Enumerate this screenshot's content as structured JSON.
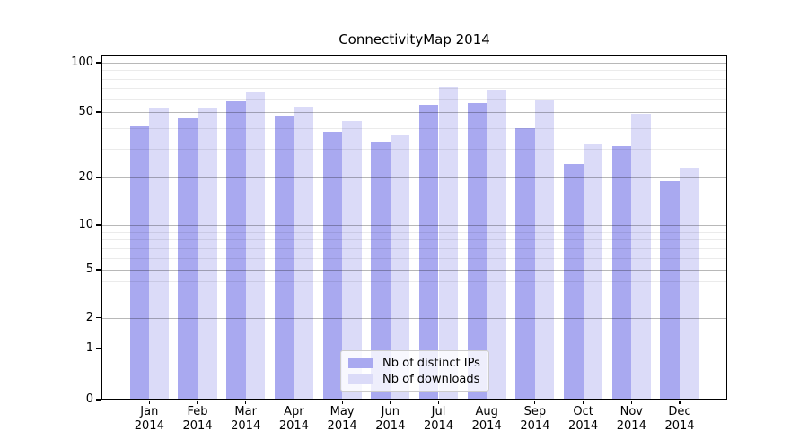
{
  "chart_data": {
    "type": "bar",
    "title": "ConnectivityMap 2014",
    "months": [
      "Jan",
      "Feb",
      "Mar",
      "Apr",
      "May",
      "Jun",
      "Jul",
      "Aug",
      "Sep",
      "Oct",
      "Nov",
      "Dec"
    ],
    "year": "2014",
    "series": [
      {
        "name": "Nb of distinct IPs",
        "color": "#a9a9f0",
        "values": [
          41,
          46,
          58,
          47,
          38,
          33,
          55,
          57,
          40,
          24,
          31,
          19
        ]
      },
      {
        "name": "Nb of downloads",
        "color": "#dbdbf8",
        "values": [
          53,
          53,
          66,
          54,
          44,
          36,
          71,
          68,
          59,
          32,
          49,
          23
        ]
      }
    ],
    "yticks": [
      100,
      50,
      20,
      10,
      5,
      2,
      1,
      0
    ],
    "minor_gridline_values": [
      90,
      80,
      70,
      60,
      40,
      30,
      9,
      8,
      7,
      6,
      4,
      3
    ],
    "yscale": "symlog",
    "ylim": [
      0,
      100
    ],
    "grid": true,
    "legend_position": "lower center",
    "xlabel": "",
    "ylabel": ""
  }
}
